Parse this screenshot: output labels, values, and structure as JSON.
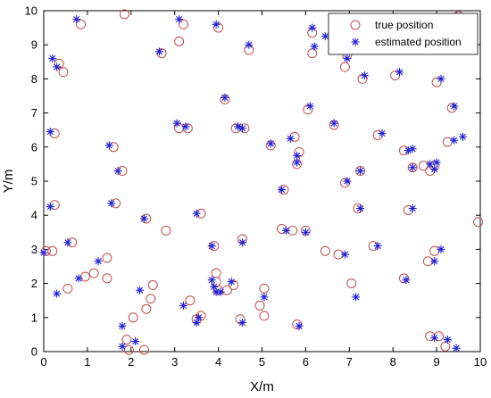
{
  "chart_data": {
    "type": "scatter",
    "xlabel": "X/m",
    "ylabel": "Y/m",
    "xlim": [
      0,
      10
    ],
    "ylim": [
      0,
      10
    ],
    "xticks": [
      "0",
      "1",
      "2",
      "3",
      "4",
      "5",
      "6",
      "7",
      "8",
      "9",
      "10"
    ],
    "yticks": [
      "0",
      "1",
      "2",
      "3",
      "4",
      "5",
      "6",
      "7",
      "8",
      "9",
      "10"
    ],
    "grid": false,
    "legend_position": "top-right",
    "series": [
      {
        "name": "true position",
        "marker": "circle",
        "color": "#c0504d",
        "points": [
          [
            0.05,
            2.95
          ],
          [
            0.2,
            2.95
          ],
          [
            0.55,
            1.85
          ],
          [
            0.65,
            3.2
          ],
          [
            0.95,
            2.2
          ],
          [
            1.15,
            2.3
          ],
          [
            1.45,
            2.15
          ],
          [
            1.45,
            2.75
          ],
          [
            1.65,
            4.35
          ],
          [
            1.6,
            6.0
          ],
          [
            1.8,
            5.3
          ],
          [
            1.85,
            9.9
          ],
          [
            0.85,
            9.6
          ],
          [
            0.25,
            6.4
          ],
          [
            0.25,
            4.3
          ],
          [
            0.35,
            8.45
          ],
          [
            0.45,
            8.2
          ],
          [
            1.95,
            0.05
          ],
          [
            1.9,
            0.35
          ],
          [
            2.05,
            1.0
          ],
          [
            2.3,
            0.05
          ],
          [
            2.35,
            1.25
          ],
          [
            2.45,
            1.55
          ],
          [
            2.5,
            1.95
          ],
          [
            2.35,
            3.9
          ],
          [
            2.8,
            3.55
          ],
          [
            2.7,
            8.75
          ],
          [
            3.2,
            9.6
          ],
          [
            3.1,
            9.1
          ],
          [
            3.1,
            6.55
          ],
          [
            3.3,
            6.55
          ],
          [
            3.35,
            1.5
          ],
          [
            3.6,
            1.05
          ],
          [
            3.5,
            0.95
          ],
          [
            3.6,
            4.05
          ],
          [
            3.9,
            3.1
          ],
          [
            3.95,
            2.3
          ],
          [
            3.95,
            2.05
          ],
          [
            4.0,
            1.8
          ],
          [
            4.2,
            1.8
          ],
          [
            4.35,
            1.95
          ],
          [
            4.5,
            0.95
          ],
          [
            4.55,
            3.3
          ],
          [
            4.15,
            7.4
          ],
          [
            4.0,
            9.5
          ],
          [
            4.4,
            6.55
          ],
          [
            4.6,
            6.55
          ],
          [
            4.7,
            8.85
          ],
          [
            4.95,
            1.35
          ],
          [
            5.05,
            1.85
          ],
          [
            5.05,
            1.05
          ],
          [
            5.2,
            6.05
          ],
          [
            5.45,
            3.6
          ],
          [
            5.5,
            4.75
          ],
          [
            5.7,
            3.55
          ],
          [
            5.85,
            5.85
          ],
          [
            5.8,
            5.5
          ],
          [
            5.75,
            6.3
          ],
          [
            5.8,
            0.8
          ],
          [
            6.0,
            3.55
          ],
          [
            6.05,
            7.1
          ],
          [
            6.15,
            8.75
          ],
          [
            6.15,
            9.35
          ],
          [
            6.45,
            2.95
          ],
          [
            6.65,
            6.65
          ],
          [
            6.75,
            2.85
          ],
          [
            6.9,
            4.95
          ],
          [
            6.9,
            8.35
          ],
          [
            6.95,
            8.7
          ],
          [
            7.05,
            2.0
          ],
          [
            7.2,
            4.2
          ],
          [
            7.25,
            5.3
          ],
          [
            7.3,
            8.0
          ],
          [
            7.55,
            3.1
          ],
          [
            7.65,
            6.35
          ],
          [
            8.05,
            8.1
          ],
          [
            8.25,
            5.9
          ],
          [
            8.25,
            2.15
          ],
          [
            8.35,
            4.15
          ],
          [
            8.45,
            5.4
          ],
          [
            8.7,
            5.45
          ],
          [
            8.85,
            5.3
          ],
          [
            8.95,
            5.45
          ],
          [
            8.8,
            2.65
          ],
          [
            8.95,
            2.95
          ],
          [
            8.85,
            0.45
          ],
          [
            9.05,
            0.45
          ],
          [
            9.2,
            0.15
          ],
          [
            9.0,
            7.9
          ],
          [
            9.25,
            6.15
          ],
          [
            9.35,
            7.15
          ],
          [
            9.5,
            9.85
          ],
          [
            9.95,
            3.8
          ]
        ]
      },
      {
        "name": "estimated position",
        "marker": "star",
        "color": "#1f1fd6",
        "points": [
          [
            0.0,
            2.9
          ],
          [
            0.3,
            1.7
          ],
          [
            0.55,
            3.2
          ],
          [
            0.8,
            2.15
          ],
          [
            1.25,
            2.65
          ],
          [
            1.5,
            6.05
          ],
          [
            1.55,
            4.35
          ],
          [
            1.7,
            5.3
          ],
          [
            0.75,
            9.75
          ],
          [
            0.2,
            8.6
          ],
          [
            0.3,
            8.35
          ],
          [
            0.15,
            6.45
          ],
          [
            0.15,
            4.25
          ],
          [
            1.8,
            0.75
          ],
          [
            1.8,
            0.15
          ],
          [
            2.1,
            0.3
          ],
          [
            2.2,
            1.8
          ],
          [
            2.3,
            3.9
          ],
          [
            2.65,
            8.8
          ],
          [
            3.1,
            9.75
          ],
          [
            3.05,
            6.7
          ],
          [
            3.25,
            6.6
          ],
          [
            3.2,
            1.35
          ],
          [
            3.5,
            0.85
          ],
          [
            3.55,
            1.0
          ],
          [
            3.5,
            4.05
          ],
          [
            3.85,
            3.1
          ],
          [
            3.85,
            2.1
          ],
          [
            3.9,
            1.9
          ],
          [
            3.95,
            1.75
          ],
          [
            4.05,
            1.75
          ],
          [
            4.3,
            2.05
          ],
          [
            4.55,
            3.2
          ],
          [
            4.55,
            0.85
          ],
          [
            4.15,
            7.45
          ],
          [
            3.95,
            9.6
          ],
          [
            4.45,
            6.6
          ],
          [
            4.55,
            6.55
          ],
          [
            4.7,
            9.0
          ],
          [
            5.05,
            1.6
          ],
          [
            5.2,
            6.1
          ],
          [
            5.45,
            4.75
          ],
          [
            5.55,
            3.55
          ],
          [
            5.65,
            6.25
          ],
          [
            5.8,
            5.75
          ],
          [
            5.8,
            5.55
          ],
          [
            5.85,
            0.75
          ],
          [
            6.0,
            3.5
          ],
          [
            6.1,
            7.2
          ],
          [
            6.15,
            9.5
          ],
          [
            6.2,
            8.95
          ],
          [
            6.45,
            9.25
          ],
          [
            6.65,
            6.7
          ],
          [
            6.9,
            2.85
          ],
          [
            6.95,
            8.6
          ],
          [
            6.95,
            5.0
          ],
          [
            7.15,
            1.6
          ],
          [
            7.25,
            5.3
          ],
          [
            7.25,
            4.2
          ],
          [
            7.35,
            8.1
          ],
          [
            7.65,
            3.1
          ],
          [
            7.75,
            6.4
          ],
          [
            8.15,
            8.2
          ],
          [
            8.35,
            5.9
          ],
          [
            8.45,
            5.95
          ],
          [
            8.3,
            2.1
          ],
          [
            8.45,
            4.2
          ],
          [
            8.45,
            5.4
          ],
          [
            8.85,
            5.5
          ],
          [
            9.0,
            5.55
          ],
          [
            8.95,
            5.35
          ],
          [
            8.95,
            2.65
          ],
          [
            9.1,
            3.0
          ],
          [
            8.95,
            0.4
          ],
          [
            9.25,
            0.35
          ],
          [
            9.45,
            0.1
          ],
          [
            9.1,
            8.0
          ],
          [
            9.4,
            7.2
          ],
          [
            9.4,
            6.2
          ],
          [
            9.6,
            6.3
          ],
          [
            9.45,
            9.85
          ]
        ]
      }
    ]
  }
}
